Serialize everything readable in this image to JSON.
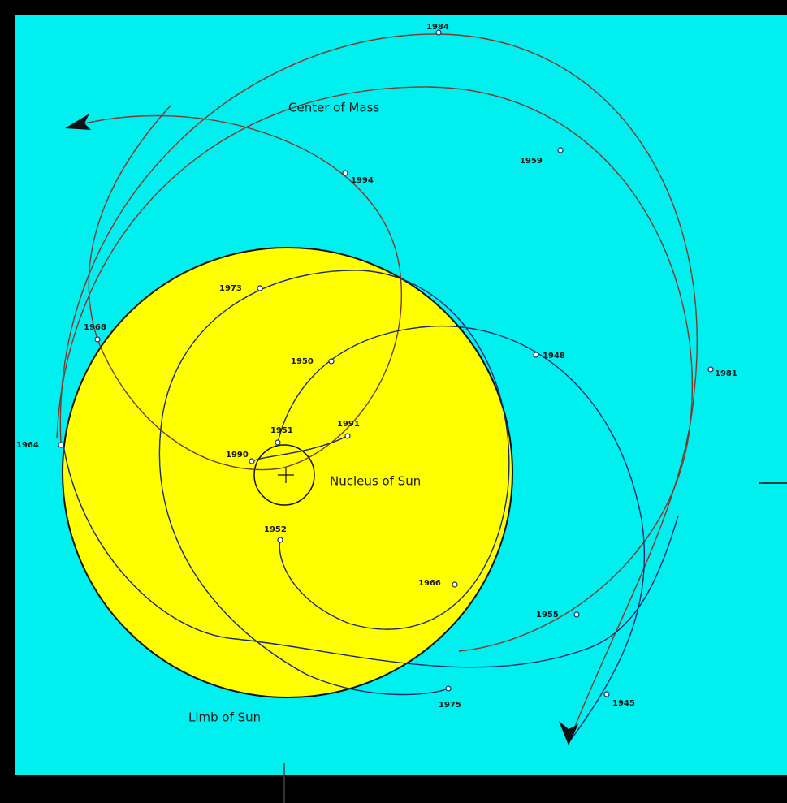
{
  "labels": {
    "center_of_mass": "Center of Mass",
    "nucleus": "Nucleus of Sun",
    "limb": "Limb of Sun"
  },
  "years": [
    "1984",
    "1959",
    "1994",
    "1973",
    "1968",
    "1950",
    "1948",
    "1981",
    "1964",
    "1951",
    "1991",
    "1990",
    "1952",
    "1966",
    "1955",
    "1975",
    "1945"
  ]
}
